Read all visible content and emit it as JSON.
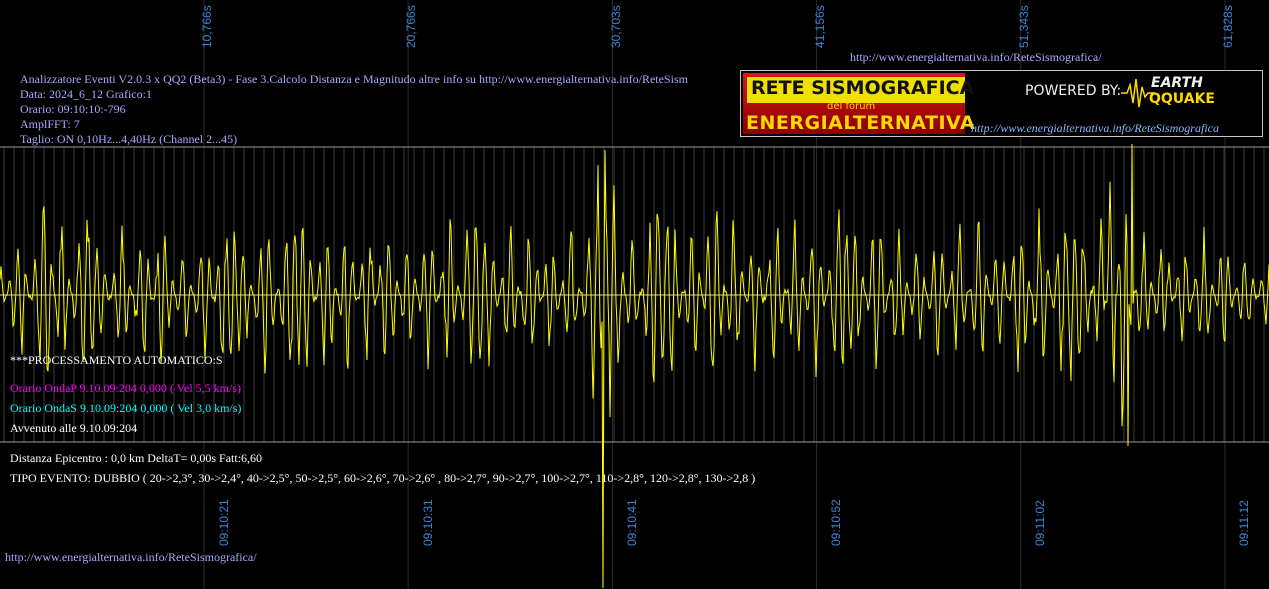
{
  "header": {
    "lines": [
      "Analizzatore Eventi V2.0.3 x QQ2 (Beta3) - Fase 3.Calcolo Distanza e Magnitudo altre info su http://www.energialternativa.info/ReteSism",
      "Data: 2024_6_12 Grafico:1",
      "Orario: 09:10:10:-796",
      "AmplFFT: 7",
      "Taglio: ON 0,10Hz...4,40Hz       (Channel 2...45)"
    ],
    "top_url": "http://www.energialternativa.info/ReteSismografica/"
  },
  "logo": {
    "line1": "RETE SISMOGRAFICA",
    "line2": "del forum",
    "line3": "ENERGIALTERNATIVA",
    "powered": "POWERED BY:",
    "earth": "EARTH",
    "qquake": "QQUAKE",
    "url": "http://www.energialternativa.info/ReteSismografica"
  },
  "processing": {
    "title": "***PROCESSAMENTO AUTOMATICO:S",
    "onda_p": "Orario OndaP 9.10.09:204  0,000 ( Vel 5,5 km/s)",
    "onda_s": "Orario OndaS 9.10.09:204  0,000 ( Vel 3,0 km/s)",
    "avvenuto": "Avvenuto alle 9.10.09:204"
  },
  "result": {
    "distanza": "Distanza Epicentro : 0,0 km DeltaT= 0,00s  Fatt:6,60",
    "tipo": "TIPO EVENTO: DUBBIO ( 20->2,3°, 30->2,4°, 40->2,5°, 50->2,5°, 60->2,6°, 70->2,6° , 80->2,7°, 90->2,7°, 100->2,7°, 110->2,8°, 120->2,8°, 130->2,8 )"
  },
  "footer": {
    "url": "http://www.energialternativa.info/ReteSismografica/"
  },
  "colors": {
    "background": "#000000",
    "trace": "#ffff00",
    "grid": "#3c3c3c",
    "axis_label": "#3a86d8",
    "info_text": "#a8a8ff",
    "onda_p": "#ff00ff",
    "onda_s": "#00ffff"
  },
  "chart_data": {
    "type": "line",
    "title": "",
    "xlabel": "",
    "ylabel": "",
    "grid": true,
    "top_ticks": [
      "10,766s",
      "20,766s",
      "30,703s",
      "41,156s",
      "51,343s",
      "61,828s"
    ],
    "bottom_ticks": [
      "09:10:21",
      "09:10:31",
      "09:10:41",
      "09:10:52",
      "09:11:02",
      "09:11:12"
    ],
    "x_seconds_range": [
      0,
      62
    ],
    "ylim": [
      -1,
      1
    ],
    "series": [
      {
        "x_seconds": [
          0,
          1,
          2,
          2.2,
          3,
          4,
          5,
          6,
          7,
          8,
          9,
          10,
          11,
          12,
          13,
          14,
          15,
          16,
          17,
          18,
          19,
          20,
          21,
          22,
          23,
          24,
          25,
          26,
          27,
          28,
          29,
          29.4,
          29.6,
          30,
          31,
          32,
          33,
          34,
          35,
          36,
          37,
          38,
          39,
          40,
          41,
          42,
          43,
          44,
          45,
          46,
          47,
          48,
          49,
          50,
          51,
          52,
          53,
          54,
          54.5,
          55,
          56,
          57,
          58,
          59,
          60,
          61,
          62
        ],
        "values": [
          0.2,
          -0.45,
          0.5,
          0.85,
          -0.6,
          0.6,
          0.3,
          -0.45,
          0.5,
          -0.55,
          0.4,
          -0.5,
          0.55,
          0.4,
          -0.6,
          0.45,
          0.5,
          -0.6,
          0.55,
          -0.5,
          0.6,
          -0.45,
          0.5,
          -0.55,
          0.5,
          0.45,
          -0.5,
          0.55,
          -0.45,
          0.5,
          -0.6,
          -0.95,
          0.4,
          0.85,
          -0.45,
          0.6,
          0.55,
          -0.55,
          0.75,
          -0.6,
          0.5,
          -0.6,
          0.5,
          -0.55,
          0.6,
          0.45,
          -0.6,
          0.5,
          -0.4,
          0.5,
          -0.5,
          0.55,
          -0.5,
          0.65,
          -0.6,
          0.5,
          0.6,
          -0.55,
          0.95,
          -0.95,
          0.5,
          -0.45,
          0.4,
          -0.45,
          0.4,
          -0.35,
          0.2
        ]
      }
    ]
  }
}
